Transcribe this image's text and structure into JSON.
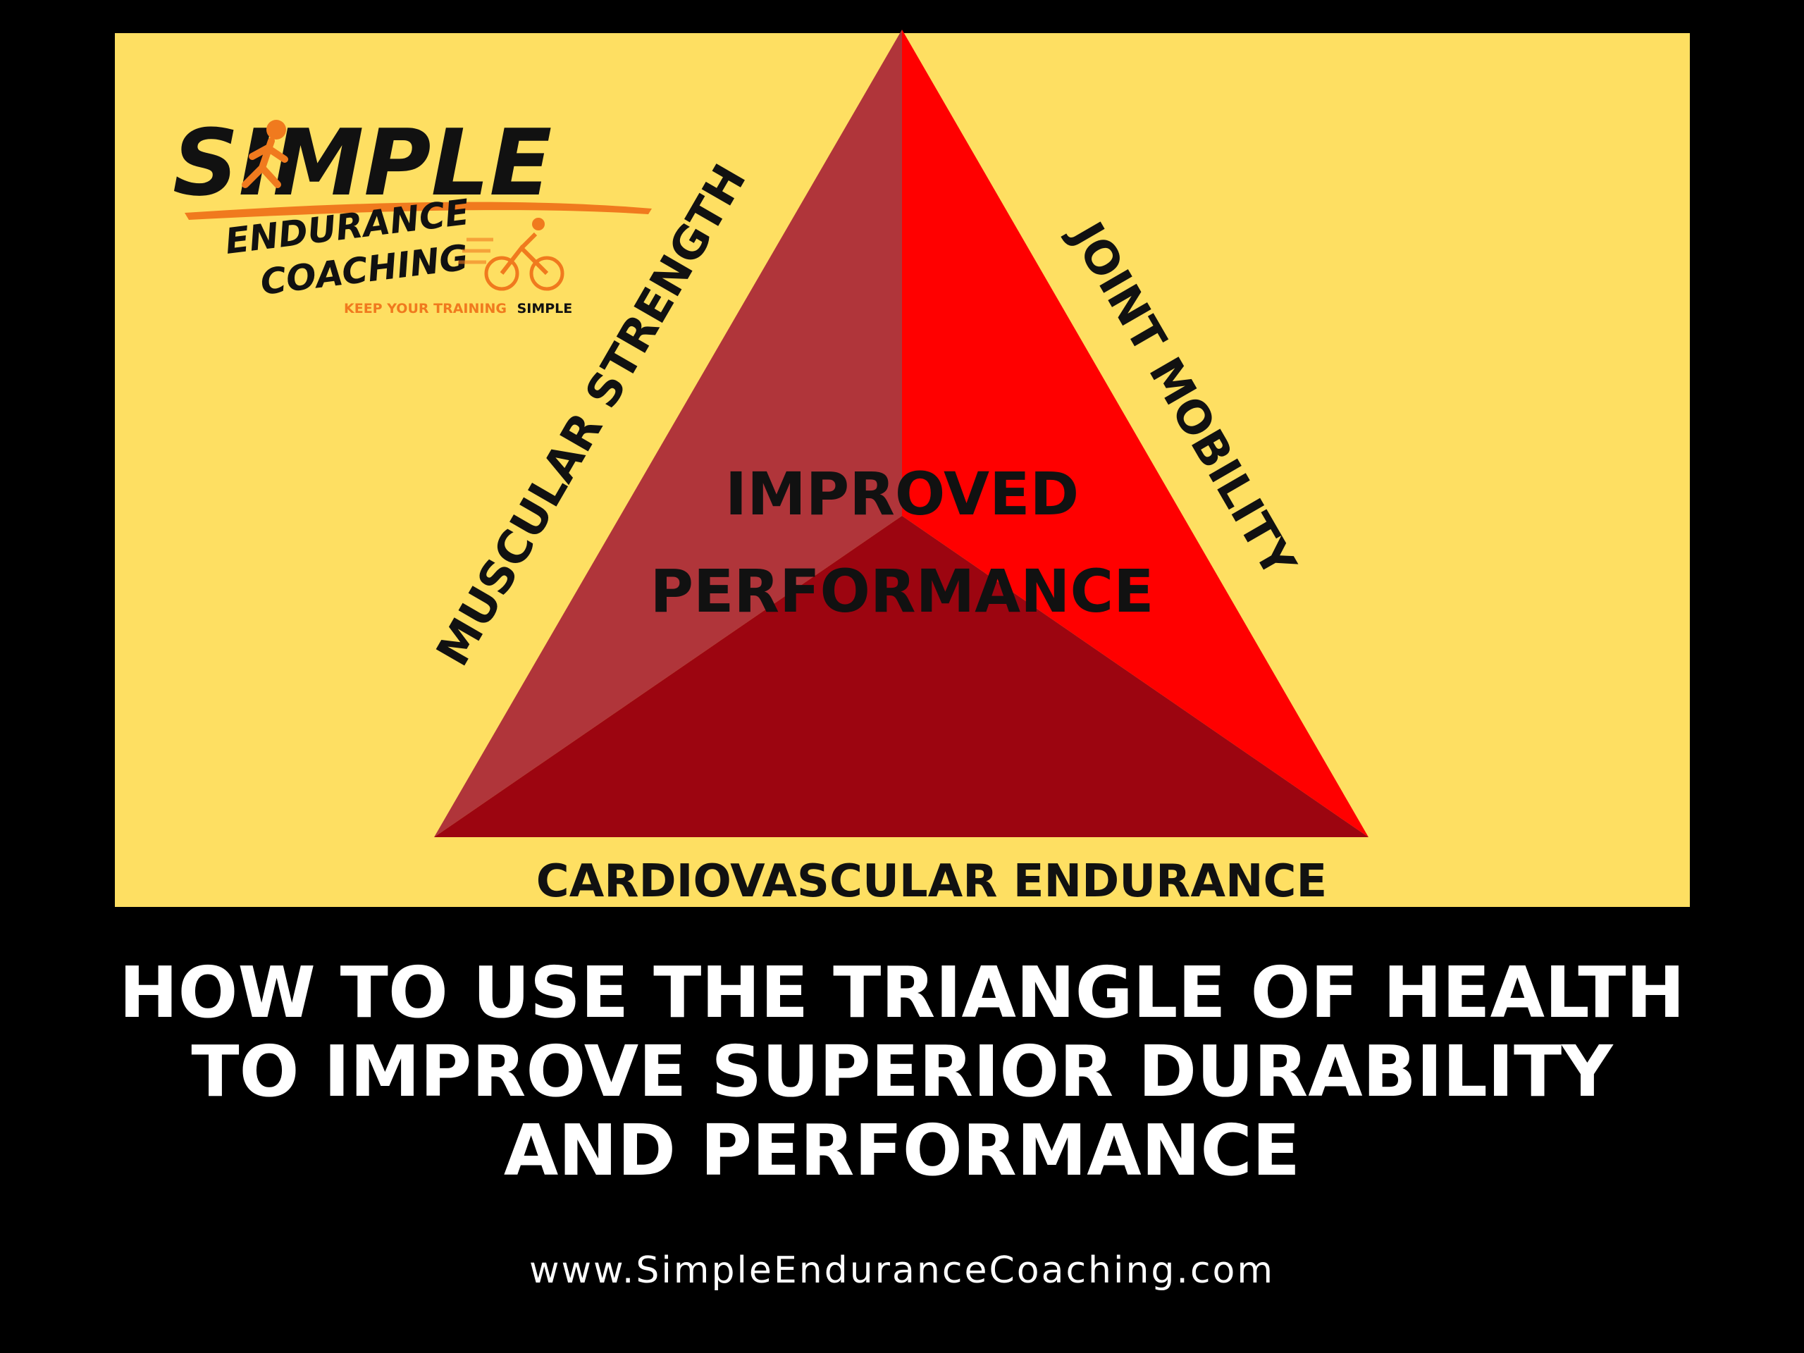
{
  "colors": {
    "background": "#000000",
    "panel": "#FEDF62",
    "face_left": "#B0353A",
    "face_right": "#FF0000",
    "face_bottom": "#9C0510",
    "logo_orange": "#F07A1E",
    "text_dark": "#111111",
    "text_light": "#FFFFFF"
  },
  "logo": {
    "brand": "SIMPLE",
    "subtitle_line1": "ENDURANCE",
    "subtitle_line2": "COACHING",
    "tagline_prefix": "KEEP YOUR TRAINING",
    "tagline_highlight": "SIMPLE",
    "icons": [
      "runner-icon",
      "cyclist-icon"
    ]
  },
  "diagram": {
    "center_line1": "IMPROVED",
    "center_line2": "PERFORMANCE",
    "left_side": "MUSCULAR STRENGTH",
    "right_side": "JOINT MOBILITY",
    "base": "CARDIOVASCULAR ENDURANCE"
  },
  "headline": {
    "line1": "HOW TO USE THE TRIANGLE OF HEALTH",
    "line2": "TO IMPROVE SUPERIOR DURABILITY",
    "line3": "AND PERFORMANCE"
  },
  "website": "www.SimpleEnduranceCoaching.com"
}
